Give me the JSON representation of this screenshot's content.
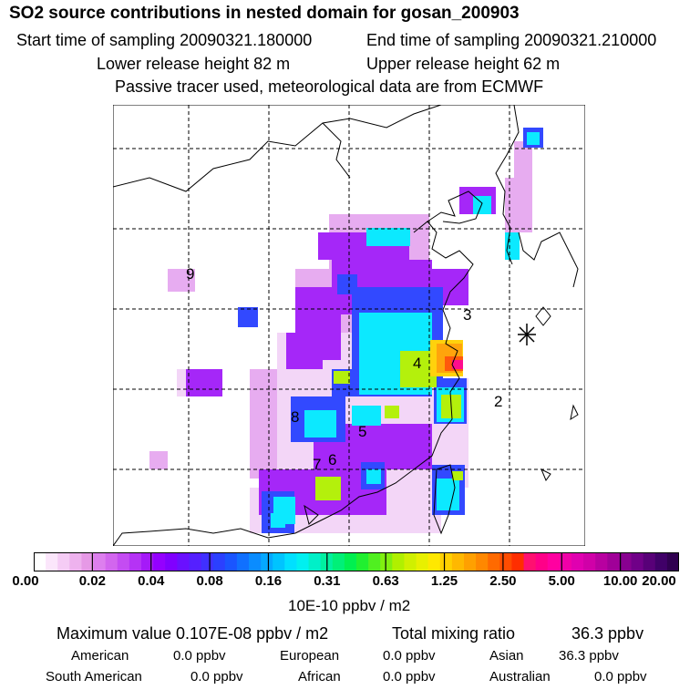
{
  "header": {
    "title": "SO2 source contributions in nested domain for gosan_200903",
    "start_label": "Start time of sampling 20090321.180000",
    "end_label": "End time of sampling 20090321.210000",
    "lower_label": "Lower release height   82 m",
    "upper_label": "Upper release height   62 m",
    "note": "Passive tracer used, meteorological data are from ECMWF"
  },
  "map": {
    "region_labels": [
      "9",
      "3",
      "4",
      "2",
      "8",
      "5",
      "7",
      "6"
    ],
    "receptor": "Gosan station marker"
  },
  "colorbar": {
    "ticks": [
      "0.00",
      "0.02",
      "0.04",
      "0.08",
      "0.16",
      "0.31",
      "0.63",
      "1.25",
      "2.50",
      "5.00",
      "10.00",
      "20.00"
    ],
    "unit": "10E-10 ppbv / m2",
    "colors": [
      "#ffffff",
      "#fbe6fb",
      "#f5ccf5",
      "#eeb2ee",
      "#e699e6",
      "#dd7fee",
      "#d266ee",
      "#c44cf2",
      "#b533f5",
      "#a51af8",
      "#9400ff",
      "#8000ff",
      "#6a10ff",
      "#5520ff",
      "#4030ff",
      "#2b40ff",
      "#1a55ff",
      "#1070ff",
      "#0a8cff",
      "#05a8ff",
      "#00c4ff",
      "#00e0ff",
      "#00f0f0",
      "#00f0c8",
      "#00f0a0",
      "#00f078",
      "#00f050",
      "#20f030",
      "#50f020",
      "#80f010",
      "#b0f000",
      "#d0f000",
      "#e8f000",
      "#ffe800",
      "#ffd000",
      "#ffb800",
      "#ffa000",
      "#ff8800",
      "#ff6a00",
      "#ff4c00",
      "#ff2e00",
      "#ff1070",
      "#ff0088",
      "#ff00a0",
      "#f000a8",
      "#e000b0",
      "#d000a8",
      "#b800a0",
      "#a00098",
      "#880090",
      "#700088",
      "#580078",
      "#400068",
      "#300050"
    ]
  },
  "stats": {
    "max_label": "Maximum value  0.107E-08 ppbv / m2",
    "total_label": "Total mixing ratio",
    "total_value": "36.3 ppbv"
  },
  "regions": [
    {
      "name": "American",
      "value": "0.0 ppbv"
    },
    {
      "name": "European",
      "value": "0.0 ppbv"
    },
    {
      "name": "Asian",
      "value": "36.3 ppbv"
    },
    {
      "name": "South American",
      "value": "0.0 ppbv"
    },
    {
      "name": "African",
      "value": "0.0 ppbv"
    },
    {
      "name": "Australian",
      "value": "0.0 ppbv"
    }
  ]
}
